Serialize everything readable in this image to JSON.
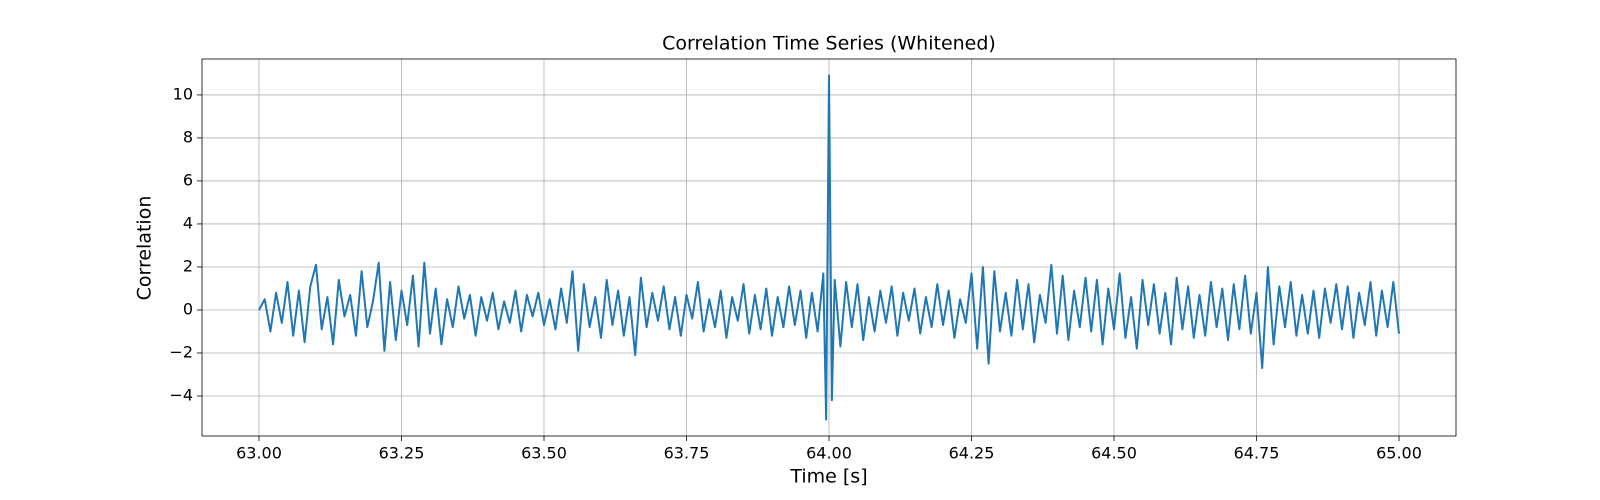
{
  "chart_data": {
    "type": "line",
    "title": "Correlation Time Series (Whitened)",
    "xlabel": "Time [s]",
    "ylabel": "Correlation",
    "xlim": [
      62.9,
      65.1
    ],
    "ylim": [
      -5.86,
      11.67
    ],
    "xticks": [
      {
        "value": 63,
        "label": "63.00"
      },
      63.25,
      {
        "value": 63.5,
        "label": "63.50"
      },
      63.75,
      {
        "value": 64,
        "label": "64.00"
      },
      64.25,
      {
        "value": 64.5,
        "label": "64.50"
      },
      64.75,
      {
        "value": 65,
        "label": "65.00"
      }
    ],
    "yticks": [
      {
        "value": -4,
        "label": "−4"
      },
      {
        "value": -2,
        "label": "−2"
      },
      0,
      2,
      4,
      6,
      8,
      10
    ],
    "grid": true,
    "series": [
      {
        "color": "#1f77b4",
        "x": [
          63,
          63.01,
          63.02,
          63.03,
          63.04,
          63.05,
          63.06,
          63.07,
          63.08,
          63.09,
          63.1,
          63.11,
          63.12,
          63.13,
          63.14,
          63.15,
          63.16,
          63.17,
          63.18,
          63.19,
          63.2,
          63.21,
          63.22,
          63.23,
          63.24,
          63.25,
          63.26,
          63.27,
          63.28,
          63.29,
          63.3,
          63.31,
          63.32,
          63.33,
          63.34,
          63.35,
          63.36,
          63.37,
          63.38,
          63.39,
          63.4,
          63.41,
          63.42,
          63.43,
          63.44,
          63.45,
          63.46,
          63.47,
          63.48,
          63.49,
          63.5,
          63.51,
          63.52,
          63.53,
          63.54,
          63.55,
          63.56,
          63.57,
          63.58,
          63.59,
          63.6,
          63.61,
          63.62,
          63.63,
          63.64,
          63.65,
          63.66,
          63.67,
          63.68,
          63.69,
          63.7,
          63.71,
          63.72,
          63.73,
          63.74,
          63.75,
          63.76,
          63.77,
          63.78,
          63.79,
          63.8,
          63.81,
          63.82,
          63.83,
          63.84,
          63.85,
          63.86,
          63.87,
          63.88,
          63.89,
          63.9,
          63.91,
          63.92,
          63.93,
          63.94,
          63.95,
          63.96,
          63.97,
          63.98,
          63.99,
          63.995,
          64,
          64.005,
          64.01,
          64.02,
          64.03,
          64.04,
          64.05,
          64.06,
          64.07,
          64.08,
          64.09,
          64.1,
          64.11,
          64.12,
          64.13,
          64.14,
          64.15,
          64.16,
          64.17,
          64.18,
          64.19,
          64.2,
          64.21,
          64.22,
          64.23,
          64.24,
          64.25,
          64.26,
          64.27,
          64.28,
          64.29,
          64.3,
          64.31,
          64.32,
          64.33,
          64.34,
          64.35,
          64.36,
          64.37,
          64.38,
          64.39,
          64.4,
          64.41,
          64.42,
          64.43,
          64.44,
          64.45,
          64.46,
          64.47,
          64.48,
          64.49,
          64.5,
          64.51,
          64.52,
          64.53,
          64.54,
          64.55,
          64.56,
          64.57,
          64.58,
          64.59,
          64.6,
          64.61,
          64.62,
          64.63,
          64.64,
          64.65,
          64.66,
          64.67,
          64.68,
          64.69,
          64.7,
          64.71,
          64.72,
          64.73,
          64.74,
          64.75,
          64.76,
          64.77,
          64.78,
          64.79,
          64.8,
          64.81,
          64.82,
          64.83,
          64.84,
          64.85,
          64.86,
          64.87,
          64.88,
          64.89,
          64.9,
          64.91,
          64.92,
          64.93,
          64.94,
          64.95,
          64.96,
          64.97,
          64.98,
          64.99,
          65
        ],
        "values": [
          0,
          0.5,
          -1.0,
          0.8,
          -0.6,
          1.3,
          -1.2,
          0.9,
          -1.5,
          1.1,
          2.1,
          -0.9,
          0.6,
          -1.6,
          1.4,
          -0.3,
          0.7,
          -1.2,
          1.8,
          -0.8,
          0.4,
          2.2,
          -1.9,
          1.3,
          -1.4,
          0.9,
          -0.7,
          1.6,
          -1.7,
          2.2,
          -1.1,
          1.0,
          -1.6,
          0.5,
          -0.8,
          1.1,
          -0.4,
          0.7,
          -1.2,
          0.6,
          -0.5,
          0.8,
          -0.9,
          0.4,
          -0.6,
          0.9,
          -1.0,
          0.7,
          -0.3,
          0.8,
          -0.7,
          0.5,
          -0.9,
          1.0,
          -0.6,
          1.8,
          -1.9,
          1.2,
          -0.8,
          0.6,
          -1.3,
          1.4,
          -0.7,
          0.9,
          -1.2,
          0.6,
          -2.1,
          1.5,
          -0.8,
          0.8,
          -0.5,
          1.1,
          -0.9,
          0.6,
          -1.2,
          0.7,
          -0.4,
          1.3,
          -1.0,
          0.5,
          -0.8,
          0.9,
          -1.3,
          0.6,
          -0.5,
          1.2,
          -1.1,
          0.7,
          -0.9,
          1.0,
          -1.2,
          0.6,
          -0.8,
          1.1,
          -0.7,
          0.9,
          -1.3,
          0.8,
          -1.0,
          1.7,
          -5.1,
          10.9,
          -4.2,
          1.4,
          -1.7,
          1.3,
          -0.8,
          1.2,
          -1.4,
          0.6,
          -1.0,
          0.9,
          -0.6,
          1.1,
          -1.2,
          0.8,
          -0.5,
          1.0,
          -1.1,
          0.6,
          -0.8,
          1.2,
          -0.7,
          0.9,
          -1.3,
          0.5,
          -0.6,
          1.7,
          -1.8,
          2.0,
          -2.5,
          1.8,
          -1.0,
          0.8,
          -1.2,
          1.4,
          -0.9,
          1.2,
          -1.5,
          0.7,
          -0.6,
          2.1,
          -1.1,
          1.6,
          -1.4,
          0.9,
          -0.8,
          1.5,
          -1.0,
          1.4,
          -1.6,
          1.0,
          -0.9,
          1.7,
          -1.3,
          0.6,
          -1.8,
          1.4,
          -0.7,
          1.2,
          -1.1,
          0.8,
          -1.6,
          1.5,
          -0.9,
          1.1,
          -1.3,
          0.7,
          -1.2,
          1.3,
          -0.8,
          1.0,
          -1.4,
          1.2,
          -0.9,
          1.6,
          -1.1,
          0.8,
          -2.7,
          2.0,
          -1.6,
          1.1,
          -0.8,
          1.3,
          -1.2,
          0.7,
          -1.1,
          0.9,
          -1.3,
          1.0,
          -0.6,
          1.2,
          -0.9,
          1.1,
          -1.3,
          0.8,
          -0.7,
          1.3,
          -1.2,
          0.9,
          -0.8,
          1.3,
          -1.1
        ]
      }
    ]
  }
}
